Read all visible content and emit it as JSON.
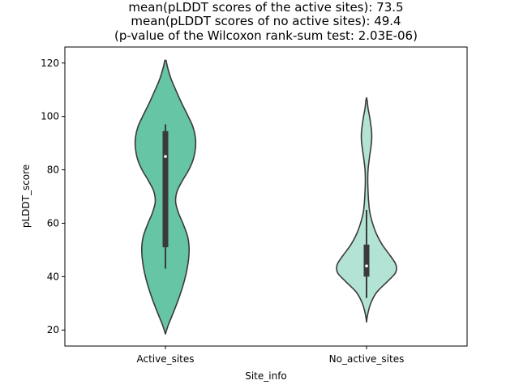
{
  "chart_data": {
    "type": "violin",
    "title_lines": [
      "mean(pLDDT scores of the active sites): 73.5",
      "mean(pLDDT scores of no active sites): 49.4",
      "(p-value of the Wilcoxon rank-sum test: 2.03E-06)"
    ],
    "xlabel": "Site_info",
    "ylabel": "pLDDT_score",
    "ylim": [
      14,
      126
    ],
    "yticks": [
      20,
      40,
      60,
      80,
      100,
      120
    ],
    "categories": [
      "Active_sites",
      "No_active_sites"
    ],
    "grid": false,
    "legend": "none",
    "colors": {
      "Active_sites": "#66c5a5",
      "No_active_sites": "#b3e3d4",
      "outline": "#3a3a3a"
    },
    "series": [
      {
        "category": "Active_sites",
        "density_profile": [
          [
            18.5,
            0.0
          ],
          [
            22,
            0.1
          ],
          [
            27,
            0.28
          ],
          [
            32,
            0.45
          ],
          [
            38,
            0.62
          ],
          [
            44,
            0.74
          ],
          [
            50,
            0.79
          ],
          [
            55,
            0.74
          ],
          [
            60,
            0.58
          ],
          [
            64,
            0.43
          ],
          [
            68,
            0.34
          ],
          [
            72,
            0.39
          ],
          [
            76,
            0.57
          ],
          [
            80,
            0.78
          ],
          [
            84,
            0.93
          ],
          [
            88,
            1.0
          ],
          [
            92,
            1.0
          ],
          [
            96,
            0.92
          ],
          [
            100,
            0.76
          ],
          [
            105,
            0.54
          ],
          [
            110,
            0.34
          ],
          [
            114,
            0.19
          ],
          [
            118,
            0.08
          ],
          [
            121,
            0.02
          ]
        ],
        "box": {
          "q1": 51,
          "median": 85,
          "q3": 94.5,
          "whisker_low": 43,
          "whisker_high": 97
        }
      },
      {
        "category": "No_active_sites",
        "density_profile": [
          [
            23,
            0.0
          ],
          [
            26,
            0.04
          ],
          [
            30,
            0.14
          ],
          [
            34,
            0.33
          ],
          [
            38,
            0.68
          ],
          [
            41,
            0.94
          ],
          [
            43,
            1.0
          ],
          [
            45,
            0.96
          ],
          [
            48,
            0.78
          ],
          [
            52,
            0.52
          ],
          [
            56,
            0.33
          ],
          [
            60,
            0.2
          ],
          [
            64,
            0.11
          ],
          [
            68,
            0.07
          ],
          [
            72,
            0.05
          ],
          [
            76,
            0.04
          ],
          [
            80,
            0.05
          ],
          [
            84,
            0.09
          ],
          [
            88,
            0.14
          ],
          [
            91,
            0.17
          ],
          [
            94,
            0.17
          ],
          [
            97,
            0.14
          ],
          [
            100,
            0.1
          ],
          [
            103,
            0.05
          ],
          [
            106,
            0.02
          ],
          [
            107,
            0.0
          ]
        ],
        "box": {
          "q1": 40,
          "median": 44,
          "q3": 52,
          "whisker_low": 32,
          "whisker_high": 65
        }
      }
    ]
  }
}
